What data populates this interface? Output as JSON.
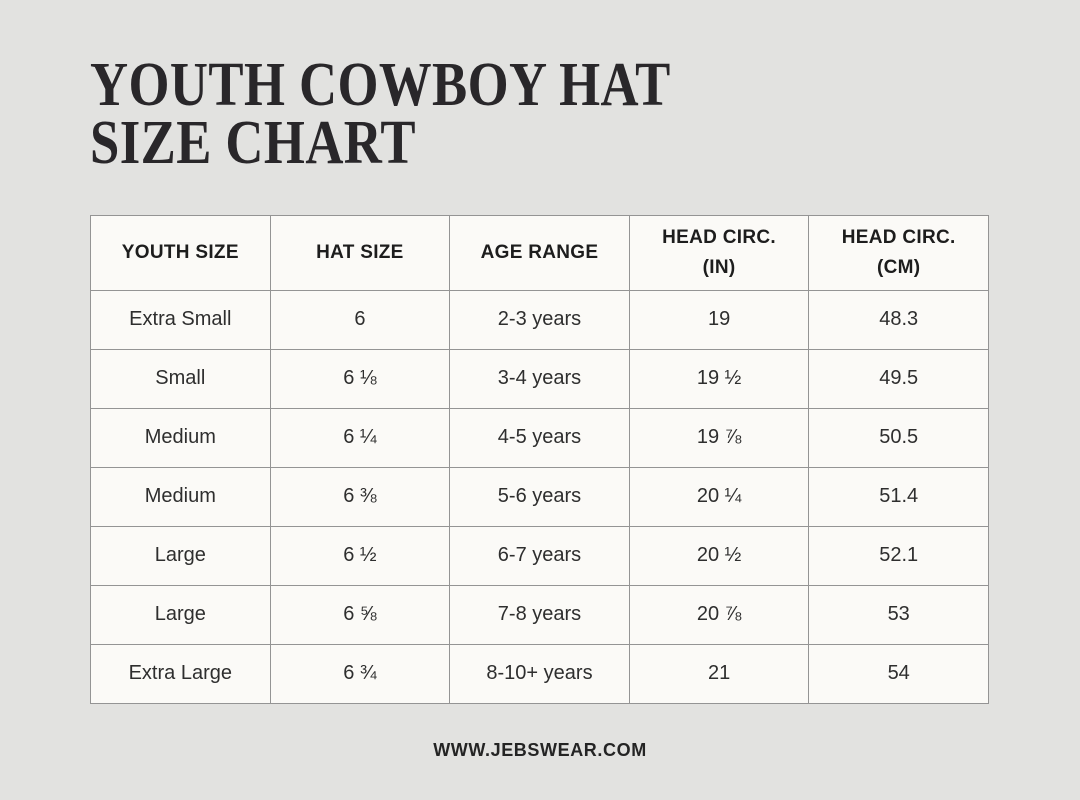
{
  "title": {
    "text": "YOUTH COWBOY HAT\nSIZE CHART"
  },
  "table": {
    "headers": [
      "YOUTH SIZE",
      "HAT SIZE",
      "AGE RANGE",
      "HEAD CIRC.\n(IN)",
      "HEAD CIRC.\n(CM)"
    ],
    "rows": [
      [
        "Extra Small",
        "6",
        "2-3 years",
        "19",
        "48.3"
      ],
      [
        "Small",
        "6 ⅛",
        "3-4 years",
        "19 ½",
        "49.5"
      ],
      [
        "Medium",
        "6 ¼",
        "4-5 years",
        "19 ⅞",
        "50.5"
      ],
      [
        "Medium",
        "6 ⅜",
        "5-6 years",
        "20 ¼",
        "51.4"
      ],
      [
        "Large",
        "6 ½",
        "6-7 years",
        "20 ½",
        "52.1"
      ],
      [
        "Large",
        "6 ⅝",
        "7-8 years",
        "20 ⅞",
        "53"
      ],
      [
        "Extra Large",
        "6 ¾",
        "8-10+ years",
        "21",
        "54"
      ]
    ]
  },
  "footer": {
    "url": "WWW.JEBSWEAR.COM"
  },
  "colors": {
    "page_background": "#e2e2e0",
    "table_background": "#fbfaf7",
    "border": "#949494",
    "title_text": "#29272a",
    "body_text": "#2e2e2e"
  },
  "chart_data": {
    "type": "table",
    "title": "YOUTH COWBOY HAT SIZE CHART",
    "columns": [
      "YOUTH SIZE",
      "HAT SIZE",
      "AGE RANGE",
      "HEAD CIRC. (IN)",
      "HEAD CIRC. (CM)"
    ],
    "rows": [
      [
        "Extra Small",
        "6",
        "2-3 years",
        "19",
        "48.3"
      ],
      [
        "Small",
        "6 1/8",
        "3-4 years",
        "19 1/2",
        "49.5"
      ],
      [
        "Medium",
        "6 1/4",
        "4-5 years",
        "19 7/8",
        "50.5"
      ],
      [
        "Medium",
        "6 3/8",
        "5-6 years",
        "20 1/4",
        "51.4"
      ],
      [
        "Large",
        "6 1/2",
        "6-7 years",
        "20 1/2",
        "52.1"
      ],
      [
        "Large",
        "6 5/8",
        "7-8 years",
        "20 7/8",
        "53"
      ],
      [
        "Extra Large",
        "6 3/4",
        "8-10+ years",
        "21",
        "54"
      ]
    ],
    "footer": "WWW.JEBSWEAR.COM"
  }
}
